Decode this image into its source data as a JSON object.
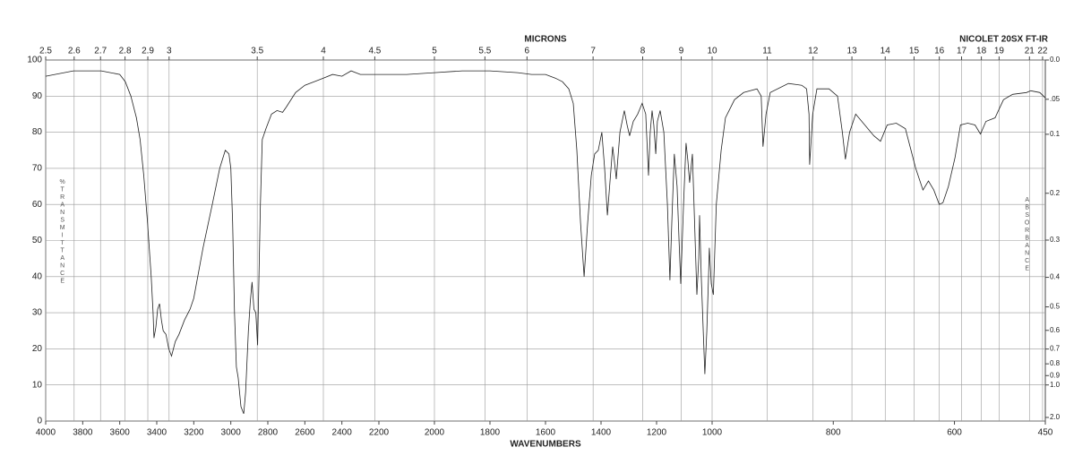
{
  "chart_data": {
    "type": "line",
    "top_axis_label": "MICRONS",
    "x_label": "WAVENUMBERS",
    "instrument": "NICOLET 20SX FT-IR",
    "y_label": "%TRANSMITTANCE",
    "y2_label": "ABSORBANCE",
    "xlim": [
      4000,
      450
    ],
    "x_breaks": [
      2200,
      1000
    ],
    "ylim": [
      0,
      100
    ],
    "grid": true,
    "color": "#222222",
    "xticks": [
      4000,
      3800,
      3600,
      3400,
      3200,
      3000,
      2800,
      2600,
      2400,
      2200,
      2000,
      1800,
      1600,
      1400,
      1200,
      1000,
      800,
      600,
      450
    ],
    "yticks": [
      0,
      10,
      20,
      30,
      40,
      50,
      60,
      70,
      80,
      90,
      100
    ],
    "micron_ticks": [
      2.5,
      2.6,
      2.7,
      2.8,
      2.9,
      3,
      3.5,
      4,
      4.5,
      5,
      5.5,
      6,
      7,
      8,
      9,
      10,
      11,
      12,
      13,
      14,
      15,
      16,
      17,
      18,
      19,
      21,
      22
    ],
    "absorbance_ticks": [
      {
        "value": 0,
        "label": "0.0"
      },
      {
        "value": 0.05,
        "label": ".05"
      },
      0.1,
      0.2,
      0.3,
      0.4,
      0.5,
      0.6,
      0.7,
      0.8,
      0.9,
      {
        "value": 1,
        "label": "1.0"
      },
      {
        "value": 2,
        "label": "2.0"
      }
    ],
    "x": [
      4000,
      3950,
      3900,
      3850,
      3800,
      3750,
      3700,
      3650,
      3600,
      3570,
      3540,
      3510,
      3490,
      3470,
      3450,
      3430,
      3420,
      3415,
      3405,
      3395,
      3385,
      3375,
      3365,
      3350,
      3335,
      3320,
      3300,
      3280,
      3250,
      3220,
      3200,
      3150,
      3100,
      3060,
      3030,
      3010,
      3000,
      2990,
      2980,
      2970,
      2960,
      2945,
      2930,
      2920,
      2905,
      2895,
      2885,
      2875,
      2865,
      2855,
      2850,
      2840,
      2830,
      2810,
      2780,
      2750,
      2720,
      2700,
      2650,
      2600,
      2550,
      2500,
      2450,
      2400,
      2350,
      2300,
      2200,
      2100,
      2000,
      1900,
      1800,
      1700,
      1650,
      1600,
      1565,
      1539,
      1516,
      1500,
      1487,
      1474,
      1461,
      1448,
      1435,
      1423,
      1410,
      1397,
      1387,
      1377,
      1368,
      1358,
      1352,
      1345,
      1332,
      1316,
      1306,
      1297,
      1284,
      1268,
      1252,
      1239,
      1229,
      1223,
      1216,
      1210,
      1203,
      1197,
      1187,
      1174,
      1161,
      1152,
      1145,
      1136,
      1126,
      1119,
      1113,
      1103,
      1094,
      1087,
      1081,
      1071,
      1065,
      1055,
      1048,
      1045,
      1039,
      1032,
      1026,
      1019,
      1013,
      1010,
      1003,
      998,
      996,
      993,
      985,
      978,
      963,
      948,
      926,
      919,
      916,
      911,
      904,
      874,
      852,
      844,
      840,
      839,
      834,
      827,
      807,
      793,
      785,
      780,
      773,
      763,
      733,
      722,
      711,
      696,
      681,
      664,
      652,
      643,
      634,
      625,
      619,
      610,
      599,
      590,
      578,
      566,
      557,
      548,
      533,
      519,
      504,
      481,
      474,
      459,
      450
    ],
    "values": [
      95.5,
      96,
      96.5,
      97,
      97,
      97,
      97,
      96.5,
      96,
      94,
      90,
      84,
      78,
      68,
      55,
      40,
      30,
      23,
      26,
      31,
      32.5,
      28,
      25,
      24,
      20,
      18,
      22,
      24,
      28,
      31,
      34,
      48,
      60,
      70,
      75,
      74,
      70,
      55,
      30,
      15,
      12,
      4,
      2,
      8,
      25,
      33,
      38.5,
      31,
      30,
      21,
      35,
      60,
      78,
      81,
      85,
      86,
      85.5,
      87,
      91,
      93,
      94,
      95,
      96,
      95.5,
      97,
      96,
      96,
      96,
      96.5,
      97,
      97,
      96.5,
      96,
      96,
      95,
      94,
      92,
      88,
      75,
      55,
      40,
      55,
      68,
      74,
      75,
      80,
      70,
      57,
      66,
      76,
      72,
      67,
      80,
      86,
      82,
      79,
      83,
      85,
      88,
      85,
      68,
      80,
      86,
      82,
      74,
      83,
      86,
      80,
      60,
      39,
      55,
      74,
      65,
      50,
      38,
      60,
      77,
      72,
      66,
      74,
      60,
      35,
      45,
      57,
      40,
      25,
      13,
      25,
      40,
      48,
      38,
      35,
      45,
      60,
      75,
      84,
      89,
      91,
      92,
      90,
      76,
      85,
      91,
      93.5,
      93,
      92,
      85,
      71,
      85,
      92,
      92,
      90,
      80,
      72.5,
      80,
      85,
      79,
      77.5,
      82,
      82.5,
      81,
      70,
      64,
      66.5,
      64,
      60,
      60.5,
      65,
      73,
      82,
      82.5,
      82,
      79.5,
      83,
      84,
      89,
      90.5,
      91,
      91.5,
      91,
      89.5
    ]
  }
}
